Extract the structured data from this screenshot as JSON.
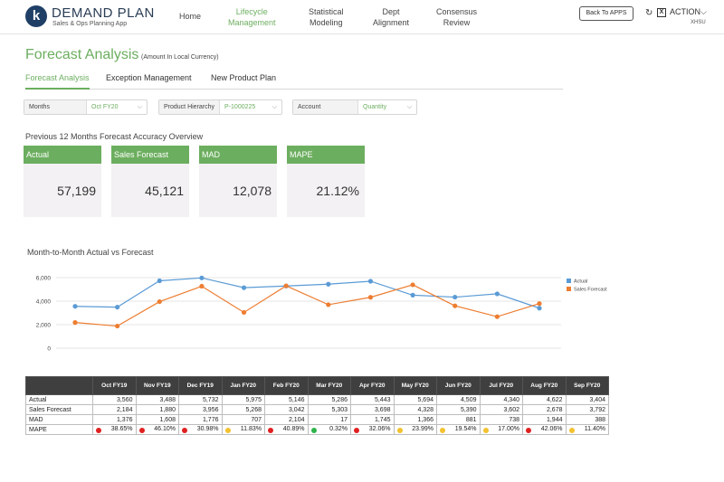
{
  "header": {
    "logo_letter": "k",
    "brand_title": "DEMAND PLAN",
    "brand_subtitle": "Sales & Ops Planning App",
    "nav": [
      {
        "label": "Home"
      },
      {
        "label": "Lifecycle\nManagement",
        "active": true
      },
      {
        "label": "Statistical\nModeling"
      },
      {
        "label": "Dept\nAlignment"
      },
      {
        "label": "Consensus\nReview"
      }
    ],
    "back_button": "Back To APPS",
    "action_label": "ACTION",
    "user_code": "XHSU"
  },
  "page": {
    "title": "Forecast Analysis",
    "title_note": "(Amount In Local Currency)"
  },
  "tabs": [
    {
      "label": "Forecast Analysis",
      "active": true
    },
    {
      "label": "Exception Management"
    },
    {
      "label": "New Product Plan"
    }
  ],
  "filters": [
    {
      "label": "Months",
      "value": "Oct FY20"
    },
    {
      "label": "Product Hierarchy",
      "value": "P-1000225"
    },
    {
      "label": "Account",
      "value": "Quantity"
    }
  ],
  "accuracy_section_title": "Previous 12 Months Forecast Accuracy Overview",
  "kpis": [
    {
      "label": "Actual",
      "value": "57,199"
    },
    {
      "label": "Sales Forecast",
      "value": "45,121"
    },
    {
      "label": "MAD",
      "value": "12,078"
    },
    {
      "label": "MAPE",
      "value": "21.12%"
    }
  ],
  "chart_title": "Month-to-Month Actual vs Forecast",
  "chart_data": {
    "type": "line",
    "x": [
      "Oct FY19",
      "Nov FY19",
      "Dec FY19",
      "Jan FY20",
      "Feb FY20",
      "Mar FY20",
      "Apr FY20",
      "May FY20",
      "Jun FY20",
      "Jul FY20",
      "Aug FY20",
      "Sep FY20"
    ],
    "series": [
      {
        "name": "Actual",
        "color": "#5b9bd5",
        "values": [
          3560,
          3488,
          5732,
          5975,
          5146,
          5286,
          5443,
          5694,
          4509,
          4340,
          4622,
          3404
        ]
      },
      {
        "name": "Sales Forecast",
        "color": "#ed7d31",
        "values": [
          2184,
          1880,
          3956,
          5268,
          3042,
          5303,
          3698,
          4328,
          5390,
          3602,
          2678,
          3792
        ]
      }
    ],
    "yticks": [
      "6,000",
      "4,000",
      "2,000",
      "0"
    ],
    "ylim": [
      0,
      6000
    ],
    "legend_position": "right",
    "grid": true
  },
  "table": {
    "columns": [
      "Oct FY19",
      "Nov FY19",
      "Dec FY19",
      "Jan FY20",
      "Feb FY20",
      "Mar FY20",
      "Apr FY20",
      "May FY20",
      "Jun FY20",
      "Jul FY20",
      "Aug FY20",
      "Sep FY20"
    ],
    "rows": [
      {
        "label": "Actual",
        "values": [
          "3,560",
          "3,488",
          "5,732",
          "5,975",
          "5,146",
          "5,286",
          "5,443",
          "5,694",
          "4,509",
          "4,340",
          "4,622",
          "3,404"
        ]
      },
      {
        "label": "Sales Forecast",
        "values": [
          "2,184",
          "1,880",
          "3,956",
          "5,268",
          "3,042",
          "5,303",
          "3,698",
          "4,328",
          "5,390",
          "3,602",
          "2,678",
          "3,792"
        ]
      },
      {
        "label": "MAD",
        "values": [
          "1,376",
          "1,608",
          "1,776",
          "707",
          "2,104",
          "17",
          "1,745",
          "1,366",
          "881",
          "738",
          "1,944",
          "388"
        ]
      },
      {
        "label": "MAPE",
        "values": [
          "38.65%",
          "46.10%",
          "30.98%",
          "11.83%",
          "40.89%",
          "0.32%",
          "32.06%",
          "23.99%",
          "19.54%",
          "17.00%",
          "42.06%",
          "11.40%"
        ],
        "status_colors": [
          "#e02020",
          "#e02020",
          "#e02020",
          "#f2c12e",
          "#e02020",
          "#2db34a",
          "#e02020",
          "#f2c12e",
          "#f2c12e",
          "#f2c12e",
          "#e02020",
          "#f2c12e"
        ]
      }
    ]
  }
}
